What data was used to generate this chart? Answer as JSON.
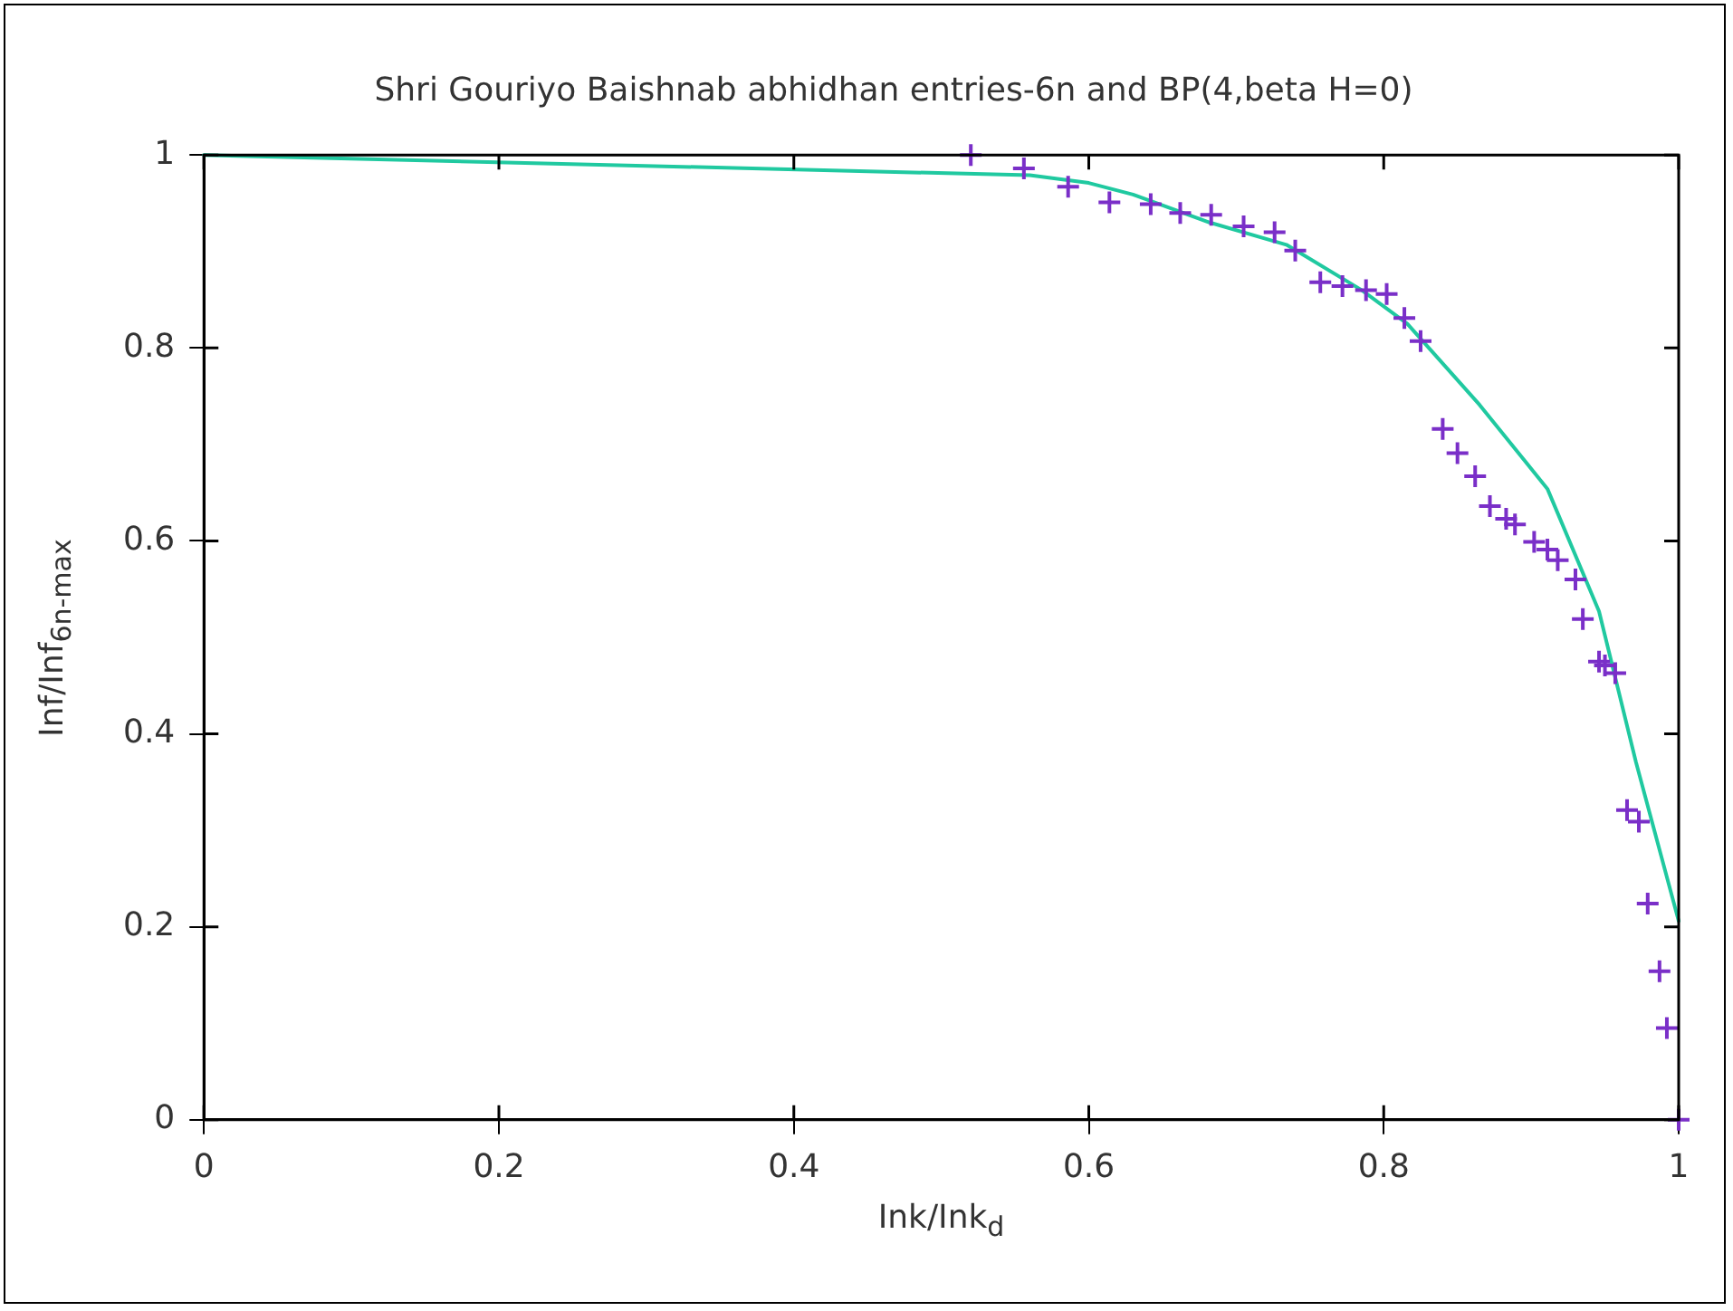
{
  "chart_data": {
    "type": "scatter",
    "title": "Shri Gouriyo Baishnab abhidhan entries-6n and BP(4,beta H=0)",
    "xlabel": "Ink/Ink$_{d}$",
    "ylabel": "Inf/Inf$_{6n-max}$",
    "xlim": [
      0,
      1
    ],
    "ylim": [
      0,
      1
    ],
    "xticks": [
      0,
      0.2,
      0.4,
      0.6,
      0.8,
      1
    ],
    "yticks": [
      0,
      0.2,
      0.4,
      0.6,
      0.8,
      1
    ],
    "grid": false,
    "legend": false,
    "series": [
      {
        "marker": "cross",
        "color": "#7a2fc8",
        "x": [
          0.52,
          0.556,
          0.586,
          0.614,
          0.642,
          0.662,
          0.683,
          0.705,
          0.726,
          0.74,
          0.757,
          0.772,
          0.788,
          0.802,
          0.814,
          0.825,
          0.84,
          0.85,
          0.862,
          0.872,
          0.883,
          0.889,
          0.902,
          0.911,
          0.918,
          0.93,
          0.935,
          0.946,
          0.95,
          0.957,
          0.965,
          0.973,
          0.979,
          0.987,
          0.992,
          1.0
        ],
        "values": [
          1.0,
          0.986,
          0.967,
          0.951,
          0.949,
          0.94,
          0.938,
          0.926,
          0.92,
          0.901,
          0.868,
          0.864,
          0.86,
          0.856,
          0.831,
          0.807,
          0.716,
          0.691,
          0.667,
          0.636,
          0.623,
          0.617,
          0.599,
          0.591,
          0.58,
          0.56,
          0.519,
          0.475,
          0.471,
          0.463,
          0.321,
          0.309,
          0.224,
          0.154,
          0.095,
          0.0
        ]
      },
      {
        "type": "line",
        "marker": "none",
        "line_style": "solid",
        "color": "#20c9a0",
        "x": [
          0,
          0.56,
          0.6,
          0.63,
          0.682,
          0.734,
          0.785,
          0.816,
          0.865,
          0.911,
          0.946,
          0.971,
          1.0
        ],
        "values": [
          1,
          0.979,
          0.971,
          0.959,
          0.93,
          0.907,
          0.86,
          0.825,
          0.741,
          0.654,
          0.527,
          0.371,
          0.206
        ]
      }
    ]
  }
}
